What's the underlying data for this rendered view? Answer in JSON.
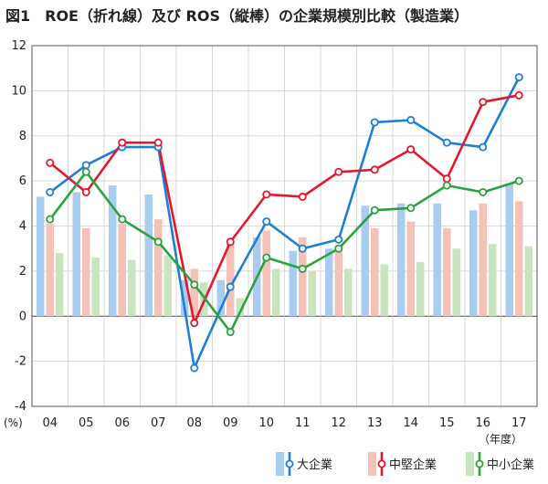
{
  "title": "図1　ROE（折れ線）及び ROS（縦棒）の企業規模別比較（製造業）",
  "chart_data": {
    "type": "bar+line",
    "categories": [
      "04",
      "05",
      "06",
      "07",
      "08",
      "09",
      "10",
      "11",
      "12",
      "13",
      "14",
      "15",
      "16",
      "17"
    ],
    "y_unit": "(%)",
    "x_unit": "（年度）",
    "ylim": [
      -4,
      12
    ],
    "yticks": [
      -4,
      -2,
      0,
      2,
      4,
      6,
      8,
      10,
      12
    ],
    "grid": true,
    "legend_position": "bottom-right",
    "series": [
      {
        "name": "大企業",
        "bar_color": "#a9cdee",
        "line_color": "#1e7fd6",
        "ros": [
          5.3,
          5.5,
          5.8,
          5.4,
          1.6,
          1.6,
          3.5,
          2.9,
          3.0,
          4.9,
          5.0,
          5.0,
          4.7,
          5.9
        ],
        "roe": [
          5.5,
          6.7,
          7.5,
          7.5,
          -2.3,
          1.3,
          4.2,
          3.0,
          3.4,
          8.6,
          8.7,
          7.7,
          7.5,
          10.6
        ]
      },
      {
        "name": "中堅企業",
        "bar_color": "#f5c2b8",
        "line_color": "#e2182e",
        "ros": [
          4.1,
          3.9,
          4.1,
          4.3,
          2.1,
          3.2,
          3.8,
          3.5,
          3.1,
          3.9,
          4.2,
          3.9,
          5.0,
          5.1
        ],
        "roe": [
          6.8,
          5.5,
          7.7,
          7.7,
          -0.3,
          3.3,
          5.4,
          5.3,
          6.4,
          6.5,
          7.4,
          6.1,
          9.5,
          9.8
        ]
      },
      {
        "name": "中小企業",
        "bar_color": "#c8e5c0",
        "line_color": "#2aa33e",
        "ros": [
          2.8,
          2.6,
          2.5,
          2.7,
          1.5,
          0.8,
          2.1,
          2.0,
          2.1,
          2.3,
          2.4,
          3.0,
          3.2,
          3.1
        ],
        "roe": [
          4.3,
          6.4,
          4.3,
          3.3,
          1.4,
          -0.7,
          2.6,
          2.1,
          3.0,
          4.7,
          4.8,
          5.8,
          5.5,
          6.0
        ]
      }
    ]
  }
}
